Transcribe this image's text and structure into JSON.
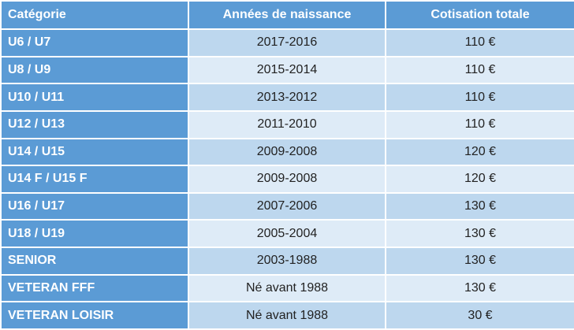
{
  "table": {
    "headers": [
      "Catégorie",
      "Années de naissance",
      "Cotisation totale"
    ],
    "rows": [
      {
        "category": "U6 / U7",
        "years": "2017-2016",
        "fee": "110 €"
      },
      {
        "category": "U8 / U9",
        "years": "2015-2014",
        "fee": "110 €"
      },
      {
        "category": "U10 / U11",
        "years": "2013-2012",
        "fee": "110 €"
      },
      {
        "category": "U12 / U13",
        "years": "2011-2010",
        "fee": "110 €"
      },
      {
        "category": "U14 / U15",
        "years": "2009-2008",
        "fee": "120 €"
      },
      {
        "category": "U14 F / U15 F",
        "years": "2009-2008",
        "fee": "120 €"
      },
      {
        "category": "U16 / U17",
        "years": "2007-2006",
        "fee": "130 €"
      },
      {
        "category": "U18 / U19",
        "years": "2005-2004",
        "fee": "130 €"
      },
      {
        "category": "SENIOR",
        "years": "2003-1988",
        "fee": "130 €"
      },
      {
        "category": "VETERAN FFF",
        "years": "Né avant 1988",
        "fee": "130 €"
      },
      {
        "category": "VETERAN LOISIR",
        "years": "Né avant 1988",
        "fee": "30 €"
      }
    ]
  },
  "colors": {
    "header_bg": "#5b9bd5",
    "row_dark": "#bdd7ee",
    "row_light": "#deebf7"
  }
}
